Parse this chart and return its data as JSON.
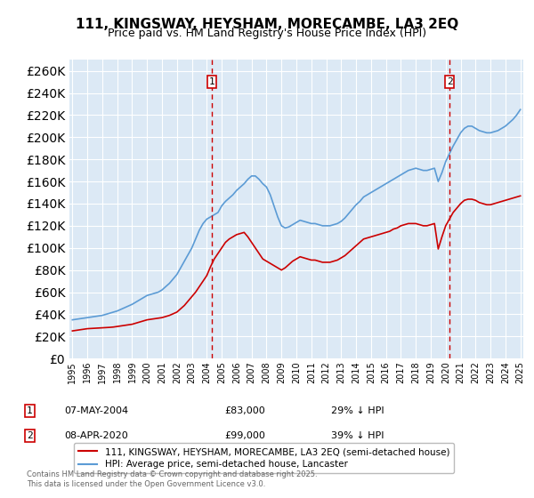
{
  "title": "111, KINGSWAY, HEYSHAM, MORECAMBE, LA3 2EQ",
  "subtitle": "Price paid vs. HM Land Registry's House Price Index (HPI)",
  "legend_line1": "111, KINGSWAY, HEYSHAM, MORECAMBE, LA3 2EQ (semi-detached house)",
  "legend_line2": "HPI: Average price, semi-detached house, Lancaster",
  "sale1_date": "07-MAY-2004",
  "sale1_price": 83000,
  "sale1_label": "29% ↓ HPI",
  "sale2_date": "08-APR-2020",
  "sale2_price": 99000,
  "sale2_label": "39% ↓ HPI",
  "footer": "Contains HM Land Registry data © Crown copyright and database right 2025.\nThis data is licensed under the Open Government Licence v3.0.",
  "ylim": [
    0,
    270000
  ],
  "yticks": [
    0,
    20000,
    40000,
    60000,
    80000,
    100000,
    120000,
    140000,
    160000,
    180000,
    200000,
    220000,
    240000,
    260000
  ],
  "background_color": "#dce9f5",
  "plot_bg": "#dce9f5",
  "red_color": "#cc0000",
  "blue_color": "#5b9bd5",
  "grid_color": "#ffffff",
  "sale1_x": 2004.35,
  "sale2_x": 2020.27,
  "hpi_data_x": [
    1995,
    1995.25,
    1995.5,
    1995.75,
    1996,
    1996.25,
    1996.5,
    1996.75,
    1997,
    1997.25,
    1997.5,
    1997.75,
    1998,
    1998.25,
    1998.5,
    1998.75,
    1999,
    1999.25,
    1999.5,
    1999.75,
    2000,
    2000.25,
    2000.5,
    2000.75,
    2001,
    2001.25,
    2001.5,
    2001.75,
    2002,
    2002.25,
    2002.5,
    2002.75,
    2003,
    2003.25,
    2003.5,
    2003.75,
    2004,
    2004.25,
    2004.5,
    2004.75,
    2005,
    2005.25,
    2005.5,
    2005.75,
    2006,
    2006.25,
    2006.5,
    2006.75,
    2007,
    2007.25,
    2007.5,
    2007.75,
    2008,
    2008.25,
    2008.5,
    2008.75,
    2009,
    2009.25,
    2009.5,
    2009.75,
    2010,
    2010.25,
    2010.5,
    2010.75,
    2011,
    2011.25,
    2011.5,
    2011.75,
    2012,
    2012.25,
    2012.5,
    2012.75,
    2013,
    2013.25,
    2013.5,
    2013.75,
    2014,
    2014.25,
    2014.5,
    2014.75,
    2015,
    2015.25,
    2015.5,
    2015.75,
    2016,
    2016.25,
    2016.5,
    2016.75,
    2017,
    2017.25,
    2017.5,
    2017.75,
    2018,
    2018.25,
    2018.5,
    2018.75,
    2019,
    2019.25,
    2019.5,
    2019.75,
    2020,
    2020.25,
    2020.5,
    2020.75,
    2021,
    2021.25,
    2021.5,
    2021.75,
    2022,
    2022.25,
    2022.5,
    2022.75,
    2023,
    2023.25,
    2023.5,
    2023.75,
    2024,
    2024.25,
    2024.5,
    2024.75,
    2025
  ],
  "hpi_data_y": [
    35000,
    35500,
    36000,
    36500,
    37000,
    37500,
    38000,
    38500,
    39000,
    40000,
    41000,
    42000,
    43000,
    44500,
    46000,
    47500,
    49000,
    51000,
    53000,
    55000,
    57000,
    58000,
    59000,
    60000,
    62000,
    65000,
    68000,
    72000,
    76000,
    82000,
    88000,
    94000,
    100000,
    108000,
    116000,
    122000,
    126000,
    128000,
    130000,
    132000,
    138000,
    142000,
    145000,
    148000,
    152000,
    155000,
    158000,
    162000,
    165000,
    165000,
    162000,
    158000,
    155000,
    148000,
    138000,
    128000,
    120000,
    118000,
    119000,
    121000,
    123000,
    125000,
    124000,
    123000,
    122000,
    122000,
    121000,
    120000,
    120000,
    120000,
    121000,
    122000,
    124000,
    127000,
    131000,
    135000,
    139000,
    142000,
    146000,
    148000,
    150000,
    152000,
    154000,
    156000,
    158000,
    160000,
    162000,
    164000,
    166000,
    168000,
    170000,
    171000,
    172000,
    171000,
    170000,
    170000,
    171000,
    172000,
    160000,
    168000,
    178000,
    185000,
    192000,
    198000,
    204000,
    208000,
    210000,
    210000,
    208000,
    206000,
    205000,
    204000,
    204000,
    205000,
    206000,
    208000,
    210000,
    213000,
    216000,
    220000,
    225000
  ],
  "price_data_x": [
    1995,
    1995.25,
    1995.5,
    1995.75,
    1996,
    1996.25,
    1996.5,
    1996.75,
    1997,
    1997.25,
    1997.5,
    1997.75,
    1998,
    1998.25,
    1998.5,
    1998.75,
    1999,
    1999.25,
    1999.5,
    1999.75,
    2000,
    2000.25,
    2000.5,
    2000.75,
    2001,
    2001.25,
    2001.5,
    2001.75,
    2002,
    2002.25,
    2002.5,
    2002.75,
    2003,
    2003.25,
    2003.5,
    2003.75,
    2004,
    2004.25,
    2004.5,
    2004.75,
    2005,
    2005.25,
    2005.5,
    2005.75,
    2006,
    2006.25,
    2006.5,
    2006.75,
    2007,
    2007.25,
    2007.5,
    2007.75,
    2008,
    2008.25,
    2008.5,
    2008.75,
    2009,
    2009.25,
    2009.5,
    2009.75,
    2010,
    2010.25,
    2010.5,
    2010.75,
    2011,
    2011.25,
    2011.5,
    2011.75,
    2012,
    2012.25,
    2012.5,
    2012.75,
    2013,
    2013.25,
    2013.5,
    2013.75,
    2014,
    2014.25,
    2014.5,
    2014.75,
    2015,
    2015.25,
    2015.5,
    2015.75,
    2016,
    2016.25,
    2016.5,
    2016.75,
    2017,
    2017.25,
    2017.5,
    2017.75,
    2018,
    2018.25,
    2018.5,
    2018.75,
    2019,
    2019.25,
    2019.5,
    2019.75,
    2020,
    2020.25,
    2020.5,
    2020.75,
    2021,
    2021.25,
    2021.5,
    2021.75,
    2022,
    2022.25,
    2022.5,
    2022.75,
    2023,
    2023.25,
    2023.5,
    2023.75,
    2024,
    2024.25,
    2024.5,
    2024.75,
    2025
  ],
  "price_data_y": [
    25000,
    25500,
    26000,
    26500,
    27000,
    27200,
    27400,
    27600,
    27800,
    28000,
    28200,
    28500,
    29000,
    29500,
    30000,
    30500,
    31000,
    32000,
    33000,
    34000,
    35000,
    35500,
    36000,
    36500,
    37000,
    38000,
    39000,
    40500,
    42000,
    45000,
    48000,
    52000,
    56000,
    60000,
    65000,
    70000,
    75000,
    83000,
    90000,
    95000,
    100000,
    105000,
    108000,
    110000,
    112000,
    113000,
    114000,
    110000,
    105000,
    100000,
    95000,
    90000,
    88000,
    86000,
    84000,
    82000,
    80000,
    82000,
    85000,
    88000,
    90000,
    92000,
    91000,
    90000,
    89000,
    89000,
    88000,
    87000,
    87000,
    87000,
    88000,
    89000,
    91000,
    93000,
    96000,
    99000,
    102000,
    105000,
    108000,
    109000,
    110000,
    111000,
    112000,
    113000,
    114000,
    115000,
    117000,
    118000,
    120000,
    121000,
    122000,
    122000,
    122000,
    121000,
    120000,
    120000,
    121000,
    122000,
    99000,
    110000,
    120000,
    126000,
    132000,
    136000,
    140000,
    143000,
    144000,
    144000,
    143000,
    141000,
    140000,
    139000,
    139000,
    140000,
    141000,
    142000,
    143000,
    144000,
    145000,
    146000,
    147000
  ]
}
